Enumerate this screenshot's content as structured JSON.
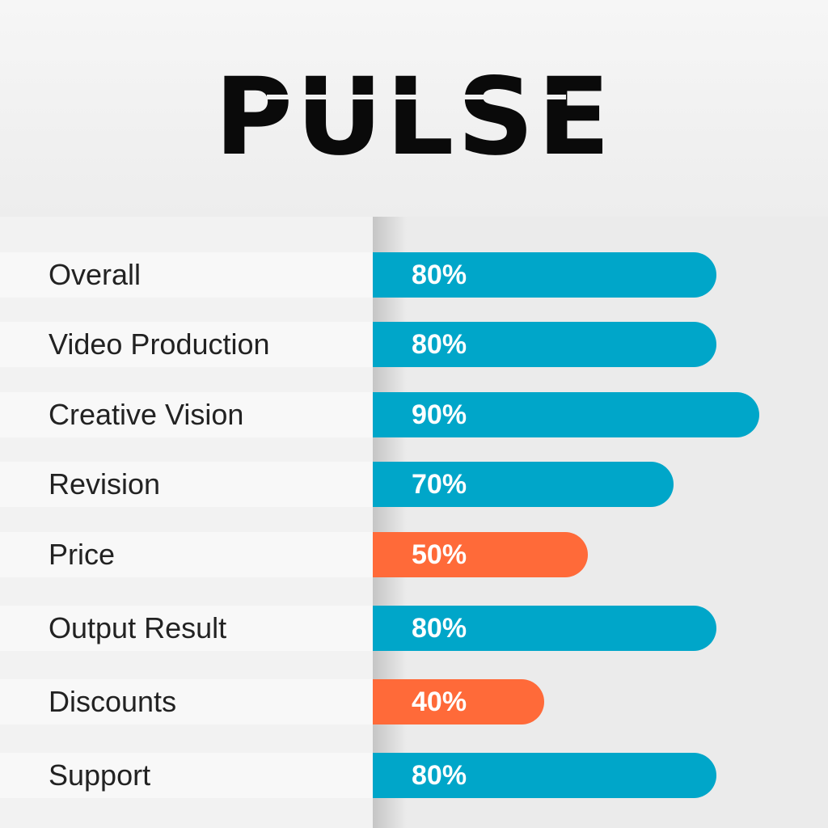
{
  "title": "PULSE",
  "colors": {
    "high": "#00a6c9",
    "low": "#ff6a39"
  },
  "chart_data": {
    "type": "bar",
    "orientation": "horizontal",
    "title": "PULSE",
    "categories": [
      "Overall",
      "Video Production",
      "Creative Vision",
      "Revision",
      "Price",
      "Output Result",
      "Discounts",
      "Support"
    ],
    "values": [
      80,
      80,
      90,
      70,
      50,
      80,
      40,
      80
    ],
    "value_labels": [
      "80%",
      "80%",
      "90%",
      "70%",
      "50%",
      "80%",
      "40%",
      "80%"
    ],
    "bar_colors": [
      "#00a6c9",
      "#00a6c9",
      "#00a6c9",
      "#00a6c9",
      "#ff6a39",
      "#00a6c9",
      "#ff6a39",
      "#00a6c9"
    ],
    "xlim": [
      0,
      100
    ],
    "grid": false,
    "legend": "none"
  }
}
